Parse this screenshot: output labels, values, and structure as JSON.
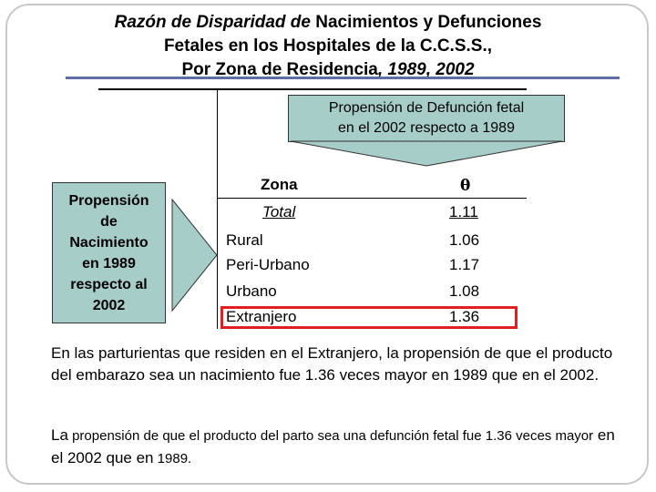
{
  "title": {
    "line1_italic": "Razón de Disparidad de",
    "line1_rest": " Nacimientos y Defunciones",
    "line2": "Fetales en los Hospitales de la C.C.S.S.,",
    "line3_a": "Por Zona de Residencia",
    "line3_b": ", 1989, 2002"
  },
  "callout": {
    "line1": "Propensión de Defunción fetal",
    "line2": "en el 2002 respecto a 1989"
  },
  "left_box": {
    "lines": [
      "Propensión",
      "de",
      "Nacimiento",
      "en 1989",
      "respecto al",
      "2002"
    ]
  },
  "table": {
    "col1_header": "Zona",
    "col2_header": "θ",
    "total": {
      "zona": "Total",
      "theta": "1.11"
    },
    "rows": [
      {
        "zona": "Rural",
        "theta": "1.06"
      },
      {
        "zona": "Peri-Urbano",
        "theta": "1.17"
      },
      {
        "zona": "Urbano",
        "theta": "1.08"
      },
      {
        "zona": "Extranjero",
        "theta": "1.36"
      }
    ]
  },
  "paragraph1": "En las parturientas que residen en el Extranjero, la propensión de que el producto del embarazo sea un nacimiento fue 1.36 veces mayor en 1989 que en el 2002.",
  "paragraph2": {
    "p1": "La",
    "p2": " propensión de que el producto del parto sea una defunción fetal fue 1.36 veces mayor",
    "p3": " en el 2002 ",
    "p4": "que en",
    "p5": " 1989."
  },
  "colors": {
    "callout_fill": "#a7cdc9",
    "highlight": "#e02020",
    "rule": "#5b6ea6"
  }
}
